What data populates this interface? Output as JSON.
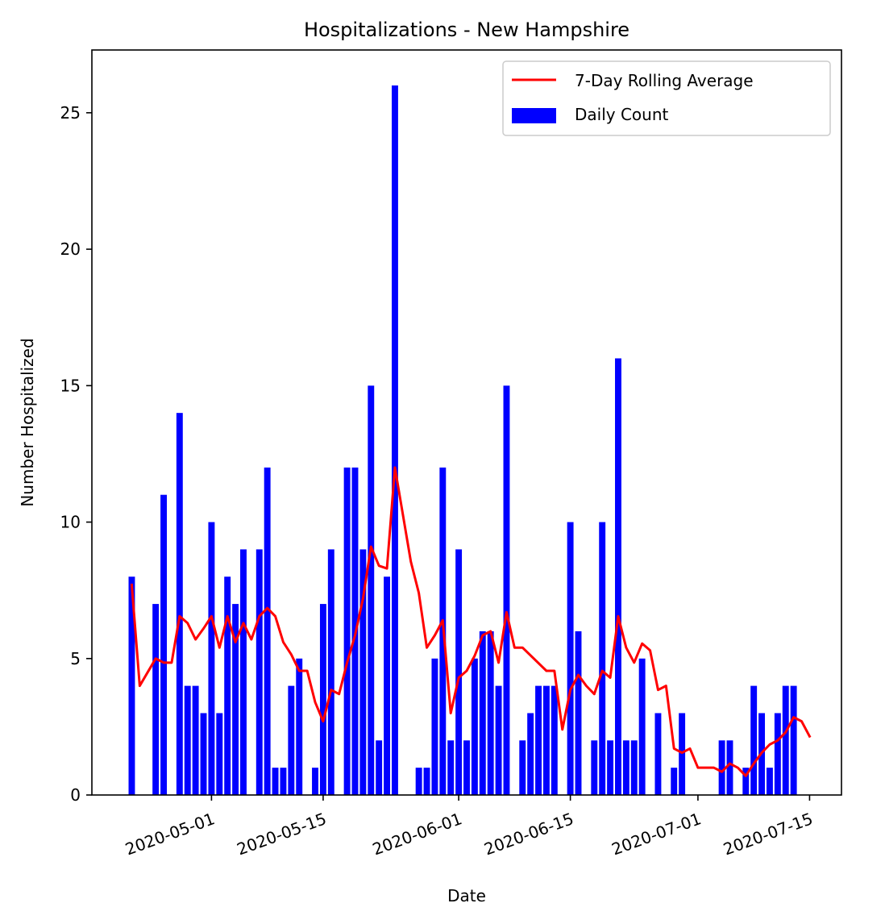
{
  "chart_data": {
    "type": "bar",
    "title": "Hospitalizations - New Hampshire",
    "xlabel": "Date",
    "ylabel": "Number Hospitalized",
    "ylim": [
      0,
      27.3
    ],
    "xlim": [
      "2020-04-16",
      "2020-07-19"
    ],
    "yticks": [
      0,
      5,
      10,
      15,
      20,
      25
    ],
    "xticks": [
      "2020-05-01",
      "2020-05-15",
      "2020-06-01",
      "2020-06-15",
      "2020-07-01",
      "2020-07-15"
    ],
    "grid": false,
    "legend_position": "top-right",
    "colors": {
      "bars": "#0000ff",
      "line": "#ff0000"
    },
    "series": [
      {
        "name": "Daily Count",
        "type": "bar",
        "points": [
          [
            "2020-04-21",
            8
          ],
          [
            "2020-04-24",
            7
          ],
          [
            "2020-04-25",
            11
          ],
          [
            "2020-04-27",
            14
          ],
          [
            "2020-04-28",
            4
          ],
          [
            "2020-04-29",
            4
          ],
          [
            "2020-04-30",
            3
          ],
          [
            "2020-05-01",
            10
          ],
          [
            "2020-05-02",
            3
          ],
          [
            "2020-05-03",
            8
          ],
          [
            "2020-05-04",
            7
          ],
          [
            "2020-05-05",
            9
          ],
          [
            "2020-05-07",
            9
          ],
          [
            "2020-05-08",
            12
          ],
          [
            "2020-05-09",
            1
          ],
          [
            "2020-05-10",
            1
          ],
          [
            "2020-05-11",
            4
          ],
          [
            "2020-05-12",
            5
          ],
          [
            "2020-05-14",
            1
          ],
          [
            "2020-05-15",
            7
          ],
          [
            "2020-05-16",
            9
          ],
          [
            "2020-05-18",
            12
          ],
          [
            "2020-05-19",
            12
          ],
          [
            "2020-05-20",
            9
          ],
          [
            "2020-05-21",
            15
          ],
          [
            "2020-05-22",
            2
          ],
          [
            "2020-05-23",
            8
          ],
          [
            "2020-05-24",
            26
          ],
          [
            "2020-05-27",
            1
          ],
          [
            "2020-05-28",
            1
          ],
          [
            "2020-05-29",
            5
          ],
          [
            "2020-05-30",
            12
          ],
          [
            "2020-05-31",
            2
          ],
          [
            "2020-06-01",
            9
          ],
          [
            "2020-06-02",
            2
          ],
          [
            "2020-06-03",
            5
          ],
          [
            "2020-06-04",
            6
          ],
          [
            "2020-06-05",
            6
          ],
          [
            "2020-06-06",
            4
          ],
          [
            "2020-06-07",
            15
          ],
          [
            "2020-06-09",
            2
          ],
          [
            "2020-06-10",
            3
          ],
          [
            "2020-06-11",
            4
          ],
          [
            "2020-06-12",
            4
          ],
          [
            "2020-06-13",
            4
          ],
          [
            "2020-06-15",
            10
          ],
          [
            "2020-06-16",
            6
          ],
          [
            "2020-06-18",
            2
          ],
          [
            "2020-06-19",
            10
          ],
          [
            "2020-06-20",
            2
          ],
          [
            "2020-06-21",
            16
          ],
          [
            "2020-06-22",
            2
          ],
          [
            "2020-06-23",
            2
          ],
          [
            "2020-06-24",
            5
          ],
          [
            "2020-06-26",
            3
          ],
          [
            "2020-06-28",
            1
          ],
          [
            "2020-06-29",
            3
          ],
          [
            "2020-07-04",
            2
          ],
          [
            "2020-07-05",
            2
          ],
          [
            "2020-07-07",
            1
          ],
          [
            "2020-07-08",
            4
          ],
          [
            "2020-07-09",
            3
          ],
          [
            "2020-07-10",
            1
          ],
          [
            "2020-07-11",
            3
          ],
          [
            "2020-07-12",
            4
          ],
          [
            "2020-07-13",
            4
          ]
        ]
      },
      {
        "name": "7-Day Rolling Average",
        "type": "line",
        "points": [
          [
            "2020-04-21",
            7.7
          ],
          [
            "2020-04-22",
            4.0
          ],
          [
            "2020-04-23",
            4.5
          ],
          [
            "2020-04-24",
            5.0
          ],
          [
            "2020-04-25",
            4.85
          ],
          [
            "2020-04-26",
            4.85
          ],
          [
            "2020-04-27",
            6.55
          ],
          [
            "2020-04-28",
            6.3
          ],
          [
            "2020-04-29",
            5.7
          ],
          [
            "2020-04-30",
            6.1
          ],
          [
            "2020-05-01",
            6.55
          ],
          [
            "2020-05-02",
            5.4
          ],
          [
            "2020-05-03",
            6.55
          ],
          [
            "2020-05-04",
            5.6
          ],
          [
            "2020-05-05",
            6.3
          ],
          [
            "2020-05-06",
            5.7
          ],
          [
            "2020-05-07",
            6.55
          ],
          [
            "2020-05-08",
            6.85
          ],
          [
            "2020-05-09",
            6.55
          ],
          [
            "2020-05-10",
            5.6
          ],
          [
            "2020-05-11",
            5.15
          ],
          [
            "2020-05-12",
            4.55
          ],
          [
            "2020-05-13",
            4.55
          ],
          [
            "2020-05-14",
            3.4
          ],
          [
            "2020-05-15",
            2.7
          ],
          [
            "2020-05-16",
            3.85
          ],
          [
            "2020-05-17",
            3.7
          ],
          [
            "2020-05-18",
            4.85
          ],
          [
            "2020-05-19",
            5.85
          ],
          [
            "2020-05-20",
            7.2
          ],
          [
            "2020-05-21",
            9.1
          ],
          [
            "2020-05-22",
            8.4
          ],
          [
            "2020-05-23",
            8.3
          ],
          [
            "2020-05-24",
            12.0
          ],
          [
            "2020-05-26",
            8.55
          ],
          [
            "2020-05-27",
            7.4
          ],
          [
            "2020-05-28",
            5.4
          ],
          [
            "2020-05-29",
            5.85
          ],
          [
            "2020-05-30",
            6.4
          ],
          [
            "2020-05-31",
            3.0
          ],
          [
            "2020-06-01",
            4.3
          ],
          [
            "2020-06-02",
            4.55
          ],
          [
            "2020-06-03",
            5.1
          ],
          [
            "2020-06-04",
            5.85
          ],
          [
            "2020-06-05",
            6.0
          ],
          [
            "2020-06-06",
            4.85
          ],
          [
            "2020-06-07",
            6.7
          ],
          [
            "2020-06-08",
            5.4
          ],
          [
            "2020-06-09",
            5.4
          ],
          [
            "2020-06-12",
            4.55
          ],
          [
            "2020-06-13",
            4.55
          ],
          [
            "2020-06-14",
            2.4
          ],
          [
            "2020-06-15",
            3.85
          ],
          [
            "2020-06-16",
            4.4
          ],
          [
            "2020-06-17",
            4.0
          ],
          [
            "2020-06-18",
            3.7
          ],
          [
            "2020-06-19",
            4.55
          ],
          [
            "2020-06-20",
            4.3
          ],
          [
            "2020-06-21",
            6.55
          ],
          [
            "2020-06-22",
            5.4
          ],
          [
            "2020-06-23",
            4.85
          ],
          [
            "2020-06-24",
            5.55
          ],
          [
            "2020-06-25",
            5.3
          ],
          [
            "2020-06-26",
            3.85
          ],
          [
            "2020-06-27",
            4.0
          ],
          [
            "2020-06-28",
            1.7
          ],
          [
            "2020-06-29",
            1.55
          ],
          [
            "2020-06-30",
            1.7
          ],
          [
            "2020-07-01",
            1.0
          ],
          [
            "2020-07-03",
            1.0
          ],
          [
            "2020-07-04",
            0.85
          ],
          [
            "2020-07-05",
            1.15
          ],
          [
            "2020-07-06",
            1.0
          ],
          [
            "2020-07-07",
            0.7
          ],
          [
            "2020-07-08",
            1.15
          ],
          [
            "2020-07-09",
            1.55
          ],
          [
            "2020-07-10",
            1.85
          ],
          [
            "2020-07-11",
            2.0
          ],
          [
            "2020-07-12",
            2.3
          ],
          [
            "2020-07-13",
            2.85
          ],
          [
            "2020-07-14",
            2.7
          ],
          [
            "2020-07-15",
            2.15
          ]
        ]
      }
    ]
  }
}
